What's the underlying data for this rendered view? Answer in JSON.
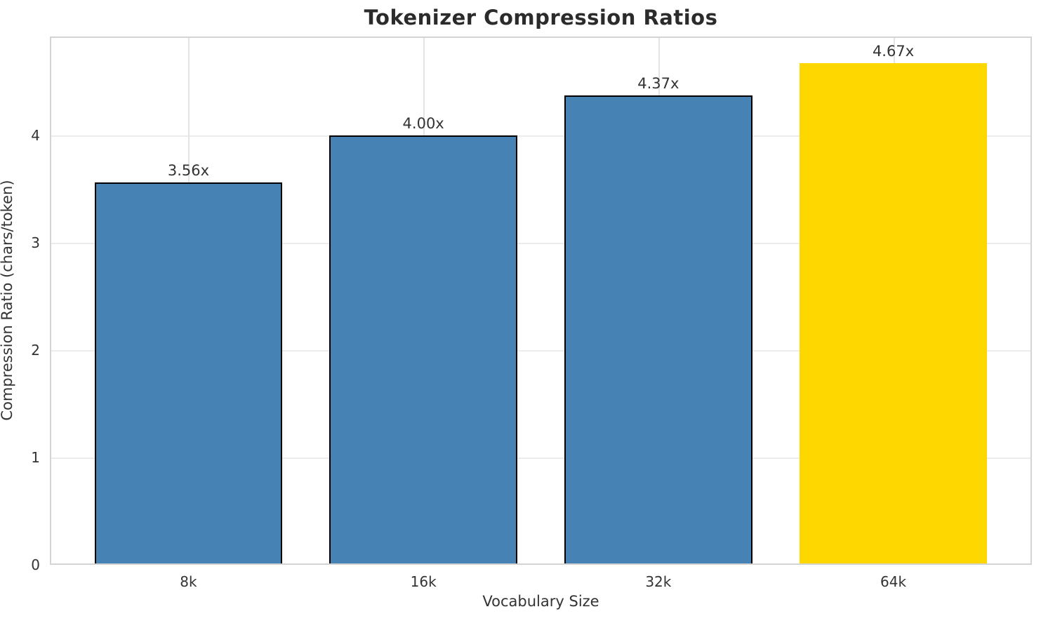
{
  "chart_data": {
    "type": "bar",
    "title": "Tokenizer Compression Ratios",
    "xlabel": "Vocabulary Size",
    "ylabel": "Compression Ratio (chars/token)",
    "categories": [
      "8k",
      "16k",
      "32k",
      "64k"
    ],
    "values": [
      3.56,
      4.0,
      4.37,
      4.67
    ],
    "bar_labels": [
      "3.56x",
      "4.00x",
      "4.37x",
      "4.67x"
    ],
    "bar_colors": [
      "#4682b4",
      "#4682b4",
      "#4682b4",
      "#ffd700"
    ],
    "bar_edge_colors": [
      "#000000",
      "#000000",
      "#000000",
      "none"
    ],
    "yticks": [
      "0",
      "1",
      "2",
      "3",
      "4"
    ],
    "ytick_values": [
      0,
      1,
      2,
      3,
      4
    ],
    "ylim": [
      0,
      4.92
    ],
    "bar_width_fraction": 0.8,
    "grid": true,
    "legend_position": "none",
    "highlight_category": "64k"
  },
  "style": {
    "background_color": "#ffffff",
    "grid_color": "#ececec",
    "vgrid_color": "#e4e4e4",
    "spine_color": "#d4d4d4",
    "text_color": "#333333",
    "title_color": "#2b2b2b",
    "accent_blue": "#4682b4",
    "accent_gold": "#ffd700"
  }
}
